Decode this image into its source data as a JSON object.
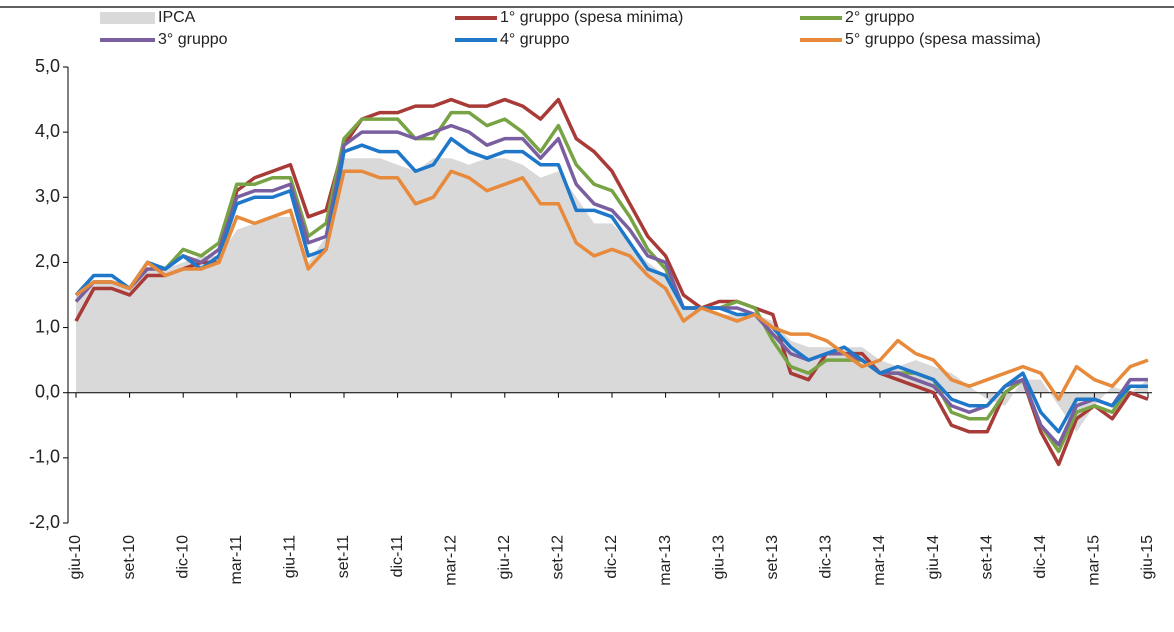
{
  "chart_data": {
    "type": "line",
    "categories": [
      "giu-10",
      null,
      null,
      "set-10",
      null,
      null,
      "dic-10",
      null,
      null,
      "mar-11",
      null,
      null,
      "giu-11",
      null,
      null,
      "set-11",
      null,
      null,
      "dic-11",
      null,
      null,
      "mar-12",
      null,
      null,
      "giu-12",
      null,
      null,
      "set-12",
      null,
      null,
      "dic-12",
      null,
      null,
      "mar-13",
      null,
      null,
      "giu-13",
      null,
      null,
      "set-13",
      null,
      null,
      "dic-13",
      null,
      null,
      "mar-14",
      null,
      null,
      "giu-14",
      null,
      null,
      "set-14",
      null,
      null,
      "dic-14",
      null,
      null,
      "mar-15",
      null,
      null,
      "giu-15"
    ],
    "series": [
      {
        "name": "IPCA",
        "type": "area",
        "color": "#d9d9d9",
        "values": [
          1.5,
          1.7,
          1.7,
          1.6,
          1.9,
          1.9,
          2.0,
          2.1,
          2.1,
          2.5,
          2.6,
          2.7,
          2.7,
          2.0,
          2.4,
          3.6,
          3.6,
          3.6,
          3.5,
          3.4,
          3.6,
          3.6,
          3.5,
          3.6,
          3.6,
          3.5,
          3.3,
          3.4,
          3.0,
          2.6,
          2.6,
          2.3,
          2.0,
          1.8,
          1.3,
          1.3,
          1.2,
          1.2,
          1.2,
          1.1,
          0.8,
          0.7,
          0.7,
          0.7,
          0.7,
          0.5,
          0.4,
          0.5,
          0.4,
          0.3,
          0.1,
          -0.1,
          -0.2,
          0.2,
          0.2,
          -0.2,
          -0.6,
          -0.2,
          0.1,
          0.0,
          0.2
        ]
      },
      {
        "name": "1° gruppo (spesa minima)",
        "type": "line",
        "color": "#a83a37",
        "values": [
          1.1,
          1.6,
          1.6,
          1.5,
          1.8,
          1.8,
          1.9,
          2.0,
          2.0,
          3.1,
          3.3,
          3.4,
          3.5,
          2.7,
          2.8,
          3.8,
          4.2,
          4.3,
          4.3,
          4.4,
          4.4,
          4.5,
          4.4,
          4.4,
          4.5,
          4.4,
          4.2,
          4.5,
          3.9,
          3.7,
          3.4,
          2.9,
          2.4,
          2.1,
          1.5,
          1.3,
          1.4,
          1.4,
          1.3,
          1.2,
          0.3,
          0.2,
          0.6,
          0.6,
          0.6,
          0.3,
          0.2,
          0.1,
          0.0,
          -0.5,
          -0.6,
          -0.6,
          0.0,
          0.2,
          -0.6,
          -1.1,
          -0.4,
          -0.2,
          -0.4,
          0.0,
          -0.1
        ]
      },
      {
        "name": "2° gruppo",
        "type": "line",
        "color": "#77a345",
        "values": [
          1.5,
          1.7,
          1.7,
          1.6,
          2.0,
          1.9,
          2.2,
          2.1,
          2.3,
          3.2,
          3.2,
          3.3,
          3.3,
          2.4,
          2.6,
          3.9,
          4.2,
          4.2,
          4.2,
          3.9,
          3.9,
          4.3,
          4.3,
          4.1,
          4.2,
          4.0,
          3.7,
          4.1,
          3.5,
          3.2,
          3.1,
          2.7,
          2.2,
          1.9,
          1.3,
          1.3,
          1.3,
          1.4,
          1.3,
          0.8,
          0.4,
          0.3,
          0.5,
          0.5,
          0.5,
          0.3,
          0.3,
          0.3,
          0.2,
          -0.3,
          -0.4,
          -0.4,
          0.0,
          0.2,
          -0.5,
          -0.9,
          -0.3,
          -0.2,
          -0.3,
          0.1,
          0.1
        ]
      },
      {
        "name": "3° gruppo",
        "type": "line",
        "color": "#7a5fa0",
        "values": [
          1.4,
          1.7,
          1.7,
          1.6,
          1.9,
          1.9,
          2.1,
          2.0,
          2.2,
          3.0,
          3.1,
          3.1,
          3.2,
          2.3,
          2.4,
          3.8,
          4.0,
          4.0,
          4.0,
          3.9,
          4.0,
          4.1,
          4.0,
          3.8,
          3.9,
          3.9,
          3.6,
          3.9,
          3.2,
          2.9,
          2.8,
          2.5,
          2.1,
          2.0,
          1.3,
          1.3,
          1.3,
          1.3,
          1.2,
          0.9,
          0.6,
          0.5,
          0.6,
          0.6,
          0.5,
          0.3,
          0.3,
          0.2,
          0.1,
          -0.2,
          -0.3,
          -0.2,
          0.1,
          0.2,
          -0.5,
          -0.8,
          -0.2,
          -0.1,
          -0.2,
          0.2,
          0.2
        ]
      },
      {
        "name": "4° gruppo",
        "type": "line",
        "color": "#1f77c9",
        "values": [
          1.5,
          1.8,
          1.8,
          1.6,
          2.0,
          1.9,
          2.1,
          1.9,
          2.1,
          2.9,
          3.0,
          3.0,
          3.1,
          2.1,
          2.2,
          3.7,
          3.8,
          3.7,
          3.7,
          3.4,
          3.5,
          3.9,
          3.7,
          3.6,
          3.7,
          3.7,
          3.5,
          3.5,
          2.8,
          2.8,
          2.7,
          2.3,
          1.9,
          1.8,
          1.3,
          1.3,
          1.3,
          1.2,
          1.2,
          1.0,
          0.7,
          0.5,
          0.6,
          0.7,
          0.5,
          0.3,
          0.4,
          0.3,
          0.2,
          -0.1,
          -0.2,
          -0.2,
          0.1,
          0.3,
          -0.3,
          -0.6,
          -0.1,
          -0.1,
          -0.2,
          0.1,
          0.1
        ]
      },
      {
        "name": "5° gruppo (spesa massima)",
        "type": "line",
        "color": "#e88a3c",
        "values": [
          1.5,
          1.7,
          1.7,
          1.6,
          2.0,
          1.8,
          1.9,
          1.9,
          2.0,
          2.7,
          2.6,
          2.7,
          2.8,
          1.9,
          2.2,
          3.4,
          3.4,
          3.3,
          3.3,
          2.9,
          3.0,
          3.4,
          3.3,
          3.1,
          3.2,
          3.3,
          2.9,
          2.9,
          2.3,
          2.1,
          2.2,
          2.1,
          1.8,
          1.6,
          1.1,
          1.3,
          1.2,
          1.1,
          1.2,
          1.0,
          0.9,
          0.9,
          0.8,
          0.6,
          0.4,
          0.5,
          0.8,
          0.6,
          0.5,
          0.2,
          0.1,
          0.2,
          0.3,
          0.4,
          0.3,
          -0.1,
          0.4,
          0.2,
          0.1,
          0.4,
          0.5
        ]
      }
    ],
    "ylim": [
      -2,
      5
    ],
    "yticks": [
      {
        "value": -2,
        "label": "-2,0"
      },
      {
        "value": -1,
        "label": "-1,0"
      },
      {
        "value": 0,
        "label": "0,0"
      },
      {
        "value": 1,
        "label": "1,0"
      },
      {
        "value": 2,
        "label": "2,0"
      },
      {
        "value": 3,
        "label": "3,0"
      },
      {
        "value": 4,
        "label": "4,0"
      },
      {
        "value": 5,
        "label": "5,0"
      }
    ],
    "grid": false
  }
}
